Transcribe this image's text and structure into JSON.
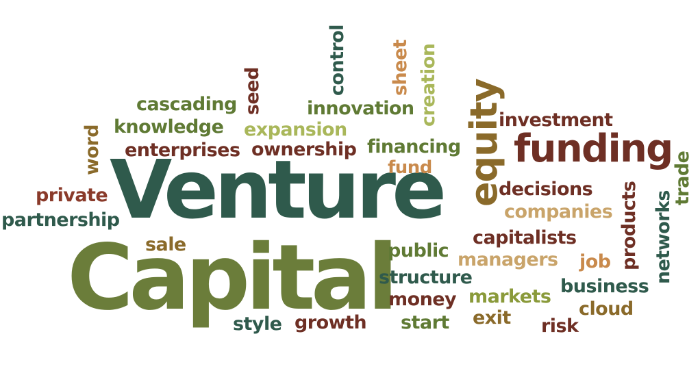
{
  "words": {
    "venture": {
      "text": "Venture",
      "color": "#2f5a4c"
    },
    "capital": {
      "text": "Capital",
      "color": "#6b7d3a"
    },
    "funding": {
      "text": "funding",
      "color": "#6e2f24"
    },
    "equity": {
      "text": "equity",
      "color": "#8a6a2a"
    },
    "investment": {
      "text": "investment",
      "color": "#6e2f24"
    },
    "innovation": {
      "text": "innovation",
      "color": "#5f7a34"
    },
    "expansion": {
      "text": "expansion",
      "color": "#a9b75a"
    },
    "ownership": {
      "text": "ownership",
      "color": "#6e2f24"
    },
    "financing": {
      "text": "financing",
      "color": "#5f7a34"
    },
    "fund": {
      "text": "fund",
      "color": "#c98a4c"
    },
    "cascading": {
      "text": "cascading",
      "color": "#5f7a34"
    },
    "knowledge": {
      "text": "knowledge",
      "color": "#5f7a34"
    },
    "enterprises": {
      "text": "enterprises",
      "color": "#6e2f24"
    },
    "private": {
      "text": "private",
      "color": "#8a3a2a"
    },
    "partnership": {
      "text": "partnership",
      "color": "#2f5a4c"
    },
    "word": {
      "text": "word",
      "color": "#8a6a2a"
    },
    "seed": {
      "text": "seed",
      "color": "#6e2f24"
    },
    "control": {
      "text": "control",
      "color": "#2f5a4c"
    },
    "sheet": {
      "text": "sheet",
      "color": "#c98a4c"
    },
    "creation": {
      "text": "creation",
      "color": "#a9b75a"
    },
    "decisions": {
      "text": "decisions",
      "color": "#6e2f24"
    },
    "companies": {
      "text": "companies",
      "color": "#c9a46a"
    },
    "capitalists": {
      "text": "capitalists",
      "color": "#6e2f24"
    },
    "managers": {
      "text": "managers",
      "color": "#c9a46a"
    },
    "job": {
      "text": "job",
      "color": "#c98a4c"
    },
    "products": {
      "text": "products",
      "color": "#6e2f24"
    },
    "networks": {
      "text": "networks",
      "color": "#2f5a4c"
    },
    "trade": {
      "text": "trade",
      "color": "#5f7a34"
    },
    "business": {
      "text": "business",
      "color": "#2f5a4c"
    },
    "cloud": {
      "text": "cloud",
      "color": "#8a6a2a"
    },
    "public": {
      "text": "public",
      "color": "#5f7a34"
    },
    "structure": {
      "text": "structure",
      "color": "#2f5a4c"
    },
    "money": {
      "text": "money",
      "color": "#6e2f24"
    },
    "markets": {
      "text": "markets",
      "color": "#8a9a3a"
    },
    "exit": {
      "text": "exit",
      "color": "#8a6a2a"
    },
    "start": {
      "text": "start",
      "color": "#5f7a34"
    },
    "risk": {
      "text": "risk",
      "color": "#6e2f24"
    },
    "style": {
      "text": "style",
      "color": "#2f5a4c"
    },
    "growth": {
      "text": "growth",
      "color": "#6e2f24"
    },
    "sale": {
      "text": "sale",
      "color": "#8a6a2a"
    }
  }
}
